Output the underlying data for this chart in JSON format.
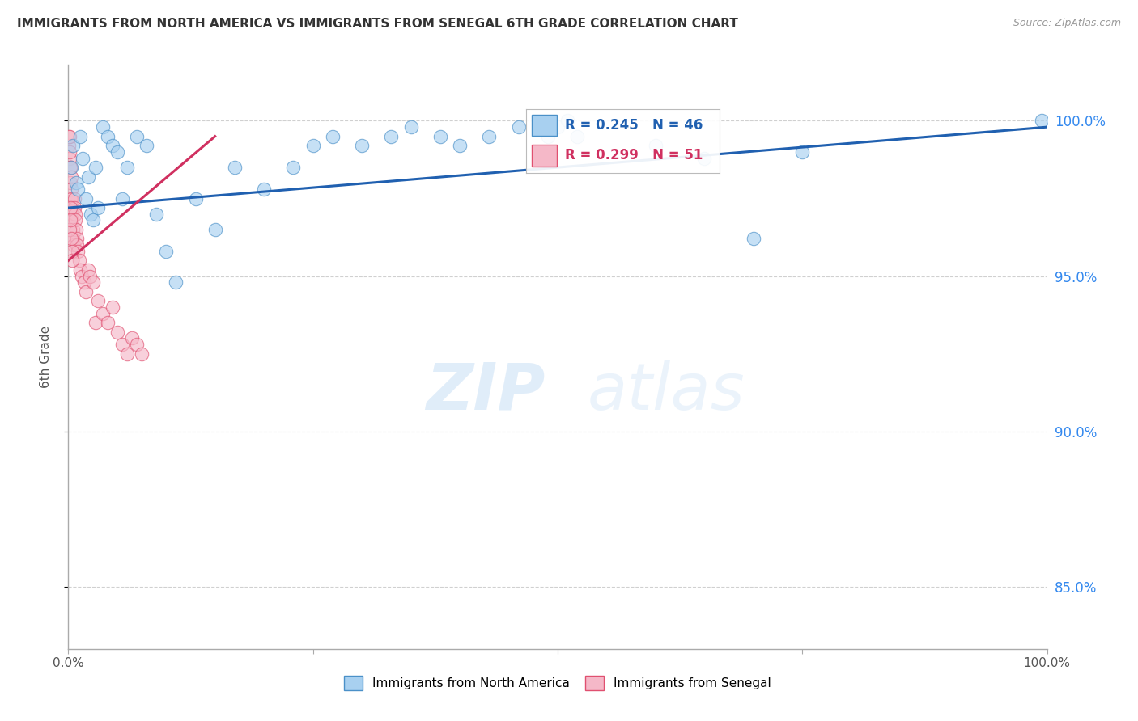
{
  "title": "IMMIGRANTS FROM NORTH AMERICA VS IMMIGRANTS FROM SENEGAL 6TH GRADE CORRELATION CHART",
  "source": "Source: ZipAtlas.com",
  "ylabel": "6th Grade",
  "ylabel_right_ticks": [
    100.0,
    95.0,
    90.0,
    85.0
  ],
  "ylabel_right_labels": [
    "100.0%",
    "95.0%",
    "90.0%",
    "85.0%"
  ],
  "xmin": 0.0,
  "xmax": 100.0,
  "ymin": 83.0,
  "ymax": 101.8,
  "blue_R": 0.245,
  "blue_N": 46,
  "pink_R": 0.299,
  "pink_N": 51,
  "blue_color": "#a8d0f0",
  "pink_color": "#f5b8c8",
  "blue_edge_color": "#4a90c8",
  "pink_edge_color": "#e05070",
  "blue_line_color": "#2060b0",
  "pink_line_color": "#d03060",
  "legend_label_blue": "Immigrants from North America",
  "legend_label_pink": "Immigrants from Senegal",
  "blue_x": [
    0.3,
    0.5,
    0.8,
    1.0,
    1.2,
    1.5,
    1.8,
    2.0,
    2.3,
    2.5,
    2.8,
    3.0,
    3.5,
    4.0,
    4.5,
    5.0,
    5.5,
    6.0,
    7.0,
    8.0,
    9.0,
    10.0,
    11.0,
    13.0,
    15.0,
    17.0,
    20.0,
    23.0,
    25.0,
    27.0,
    30.0,
    33.0,
    35.0,
    38.0,
    40.0,
    43.0,
    46.0,
    49.0,
    50.0,
    51.0,
    52.0,
    60.0,
    65.0,
    70.0,
    75.0,
    99.5
  ],
  "blue_y": [
    98.5,
    99.2,
    98.0,
    97.8,
    99.5,
    98.8,
    97.5,
    98.2,
    97.0,
    96.8,
    98.5,
    97.2,
    99.8,
    99.5,
    99.2,
    99.0,
    97.5,
    98.5,
    99.5,
    99.2,
    97.0,
    95.8,
    94.8,
    97.5,
    96.5,
    98.5,
    97.8,
    98.5,
    99.2,
    99.5,
    99.2,
    99.5,
    99.8,
    99.5,
    99.2,
    99.5,
    99.8,
    99.5,
    99.8,
    100.0,
    99.5,
    99.2,
    98.8,
    96.2,
    99.0,
    100.0
  ],
  "pink_x": [
    0.05,
    0.08,
    0.1,
    0.12,
    0.15,
    0.18,
    0.2,
    0.22,
    0.25,
    0.28,
    0.3,
    0.32,
    0.35,
    0.38,
    0.4,
    0.45,
    0.5,
    0.55,
    0.6,
    0.65,
    0.7,
    0.75,
    0.8,
    0.85,
    0.9,
    1.0,
    1.1,
    1.2,
    1.4,
    1.6,
    1.8,
    2.0,
    2.2,
    2.5,
    2.8,
    3.0,
    3.5,
    4.0,
    4.5,
    5.0,
    5.5,
    6.0,
    6.5,
    7.0,
    7.5,
    0.15,
    0.2,
    0.25,
    0.3,
    0.35,
    0.4
  ],
  "pink_y": [
    99.2,
    99.5,
    98.8,
    99.0,
    99.5,
    98.5,
    97.5,
    98.0,
    98.5,
    98.2,
    97.8,
    97.5,
    97.2,
    97.0,
    96.8,
    96.5,
    96.2,
    96.0,
    97.5,
    97.2,
    97.0,
    96.8,
    96.5,
    96.2,
    96.0,
    95.8,
    95.5,
    95.2,
    95.0,
    94.8,
    94.5,
    95.2,
    95.0,
    94.8,
    93.5,
    94.2,
    93.8,
    93.5,
    94.0,
    93.2,
    92.8,
    92.5,
    93.0,
    92.8,
    92.5,
    96.5,
    97.2,
    96.8,
    96.2,
    95.8,
    95.5
  ],
  "blue_trend_x": [
    0.0,
    100.0
  ],
  "blue_trend_y": [
    97.2,
    99.8
  ],
  "pink_trend_x": [
    0.0,
    15.0
  ],
  "pink_trend_y": [
    95.5,
    99.5
  ],
  "watermark_zip_color": "#c8dff0",
  "watermark_atlas_color": "#c8dff0",
  "background_color": "#ffffff",
  "grid_color": "#d0d0d0"
}
